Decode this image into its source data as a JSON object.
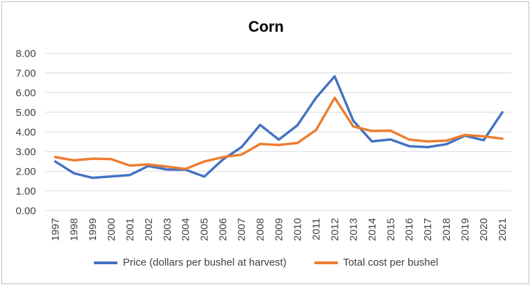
{
  "chart_data": {
    "type": "line",
    "title": "Corn",
    "xlabel": "",
    "ylabel": "",
    "ylim": [
      0,
      8
    ],
    "yticks": [
      "0.00",
      "1.00",
      "2.00",
      "3.00",
      "4.00",
      "5.00",
      "6.00",
      "7.00",
      "8.00"
    ],
    "grid": true,
    "legend": "bottom",
    "categories": [
      "1997",
      "1998",
      "1999",
      "2000",
      "2001",
      "2002",
      "2003",
      "2004",
      "2005",
      "2006",
      "2007",
      "2008",
      "2009",
      "2010",
      "2011",
      "2012",
      "2013",
      "2014",
      "2015",
      "2016",
      "2017",
      "2018",
      "2019",
      "2020",
      "2021"
    ],
    "series": [
      {
        "name": "Price (dollars per bushel at harvest)",
        "color": "#4472c4",
        "values": [
          2.5,
          1.9,
          1.67,
          1.74,
          1.81,
          2.27,
          2.09,
          2.08,
          1.73,
          2.6,
          3.23,
          4.36,
          3.61,
          4.34,
          5.74,
          6.83,
          4.57,
          3.52,
          3.62,
          3.28,
          3.23,
          3.38,
          3.81,
          3.58,
          5.0
        ]
      },
      {
        "name": "Total cost per bushel",
        "color": "#ed7d31",
        "values": [
          2.72,
          2.56,
          2.64,
          2.62,
          2.29,
          2.35,
          2.24,
          2.12,
          2.5,
          2.72,
          2.85,
          3.39,
          3.34,
          3.44,
          4.1,
          5.74,
          4.28,
          4.05,
          4.07,
          3.61,
          3.52,
          3.56,
          3.85,
          3.78,
          3.66
        ]
      }
    ]
  }
}
